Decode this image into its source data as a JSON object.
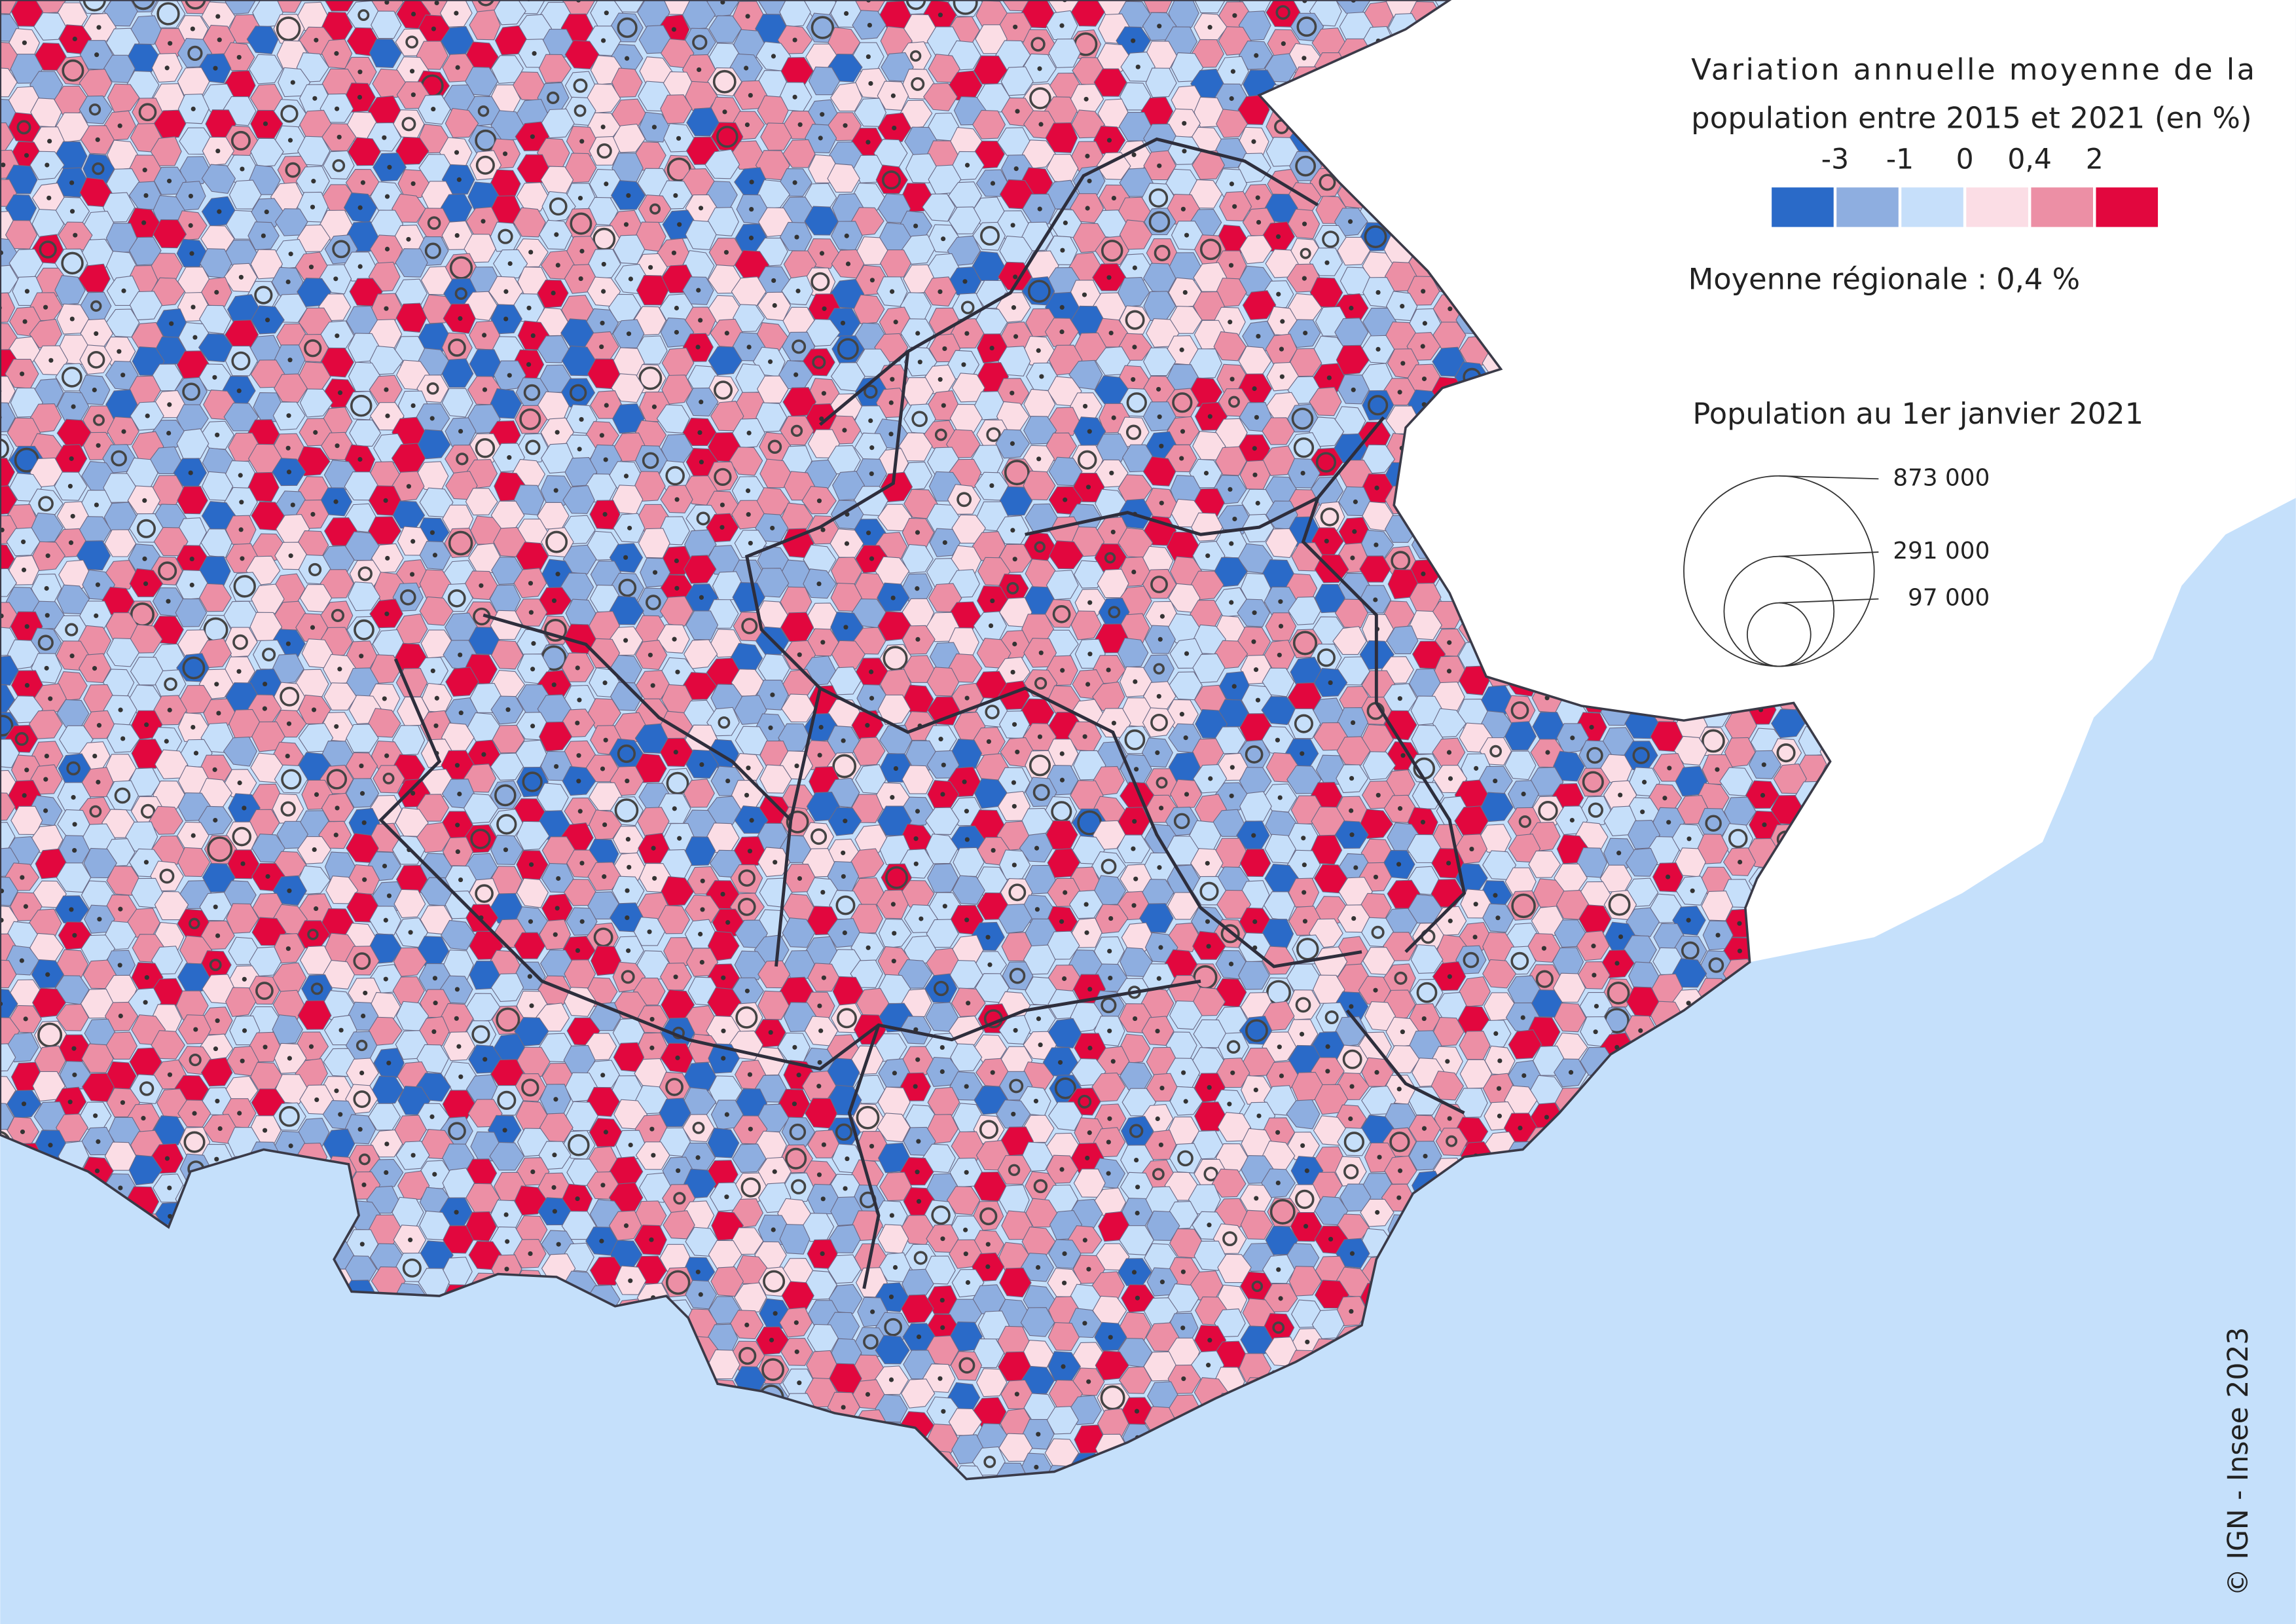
{
  "map": {
    "legend": {
      "title_lines": [
        "Variation annuelle moyenne de la",
        "population entre 2015 et 2021 (en %)"
      ],
      "breaks": [
        "-3",
        "-1",
        "0",
        "0,4",
        "2"
      ],
      "class_colors": [
        "#2a6ac8",
        "#8eaee0",
        "#c6dffa",
        "#fbdde5",
        "#ec8fa5",
        "#e2073e"
      ],
      "regional_average": "Moyenne régionale : 0,4 %"
    },
    "population_legend": {
      "title": "Population au 1er janvier 2021",
      "circles": [
        {
          "value": 873000,
          "label": "873 000"
        },
        {
          "value": 291000,
          "label": "291 000"
        },
        {
          "value": 97000,
          "label": "97 000"
        }
      ]
    },
    "credit": "© IGN - Insee 2023"
  }
}
